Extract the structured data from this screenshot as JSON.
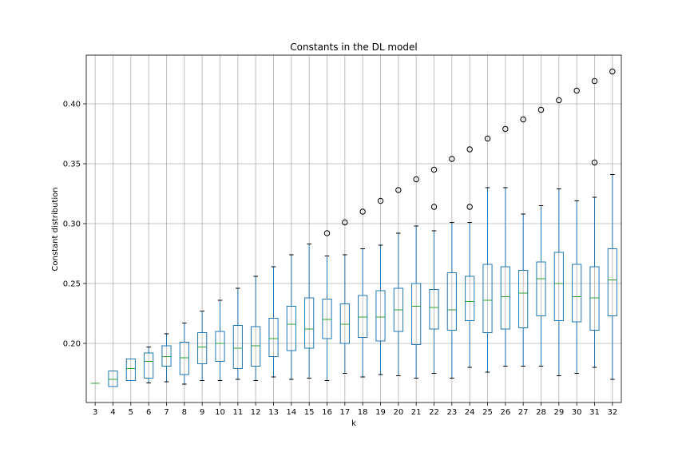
{
  "chart_data": {
    "type": "box",
    "title": "Constants in the DL model",
    "xlabel": "k",
    "ylabel": "Constant distribution",
    "grid": true,
    "ylim": [
      0.15,
      0.44
    ],
    "yticks": [
      0.2,
      0.25,
      0.3,
      0.35,
      0.4
    ],
    "ytick_labels": [
      "0.20",
      "0.25",
      "0.30",
      "0.35",
      "0.40"
    ],
    "colors": {
      "box": "#1f77b4",
      "median": "#2ca02c",
      "whisker": "#000000",
      "grid": "#b0b0b0"
    },
    "categories": [
      "3",
      "4",
      "5",
      "6",
      "7",
      "8",
      "9",
      "10",
      "11",
      "12",
      "13",
      "14",
      "15",
      "16",
      "17",
      "18",
      "19",
      "20",
      "21",
      "22",
      "23",
      "24",
      "25",
      "26",
      "27",
      "28",
      "29",
      "30",
      "31",
      "32"
    ],
    "boxes": [
      {
        "k": "3",
        "whislo": 0.1667,
        "q1": 0.1667,
        "med": 0.1667,
        "q3": 0.1667,
        "whishi": 0.1667,
        "fliers": []
      },
      {
        "k": "4",
        "whislo": 0.164,
        "q1": 0.164,
        "med": 0.17,
        "q3": 0.177,
        "whishi": 0.177,
        "fliers": []
      },
      {
        "k": "5",
        "whislo": 0.169,
        "q1": 0.169,
        "med": 0.179,
        "q3": 0.187,
        "whishi": 0.187,
        "fliers": []
      },
      {
        "k": "6",
        "whislo": 0.167,
        "q1": 0.171,
        "med": 0.185,
        "q3": 0.192,
        "whishi": 0.197,
        "fliers": []
      },
      {
        "k": "7",
        "whislo": 0.168,
        "q1": 0.181,
        "med": 0.189,
        "q3": 0.198,
        "whishi": 0.208,
        "fliers": []
      },
      {
        "k": "8",
        "whislo": 0.166,
        "q1": 0.174,
        "med": 0.188,
        "q3": 0.201,
        "whishi": 0.217,
        "fliers": []
      },
      {
        "k": "9",
        "whislo": 0.169,
        "q1": 0.183,
        "med": 0.197,
        "q3": 0.209,
        "whishi": 0.227,
        "fliers": []
      },
      {
        "k": "10",
        "whislo": 0.169,
        "q1": 0.185,
        "med": 0.2,
        "q3": 0.21,
        "whishi": 0.236,
        "fliers": []
      },
      {
        "k": "11",
        "whislo": 0.17,
        "q1": 0.179,
        "med": 0.196,
        "q3": 0.215,
        "whishi": 0.246,
        "fliers": []
      },
      {
        "k": "12",
        "whislo": 0.169,
        "q1": 0.181,
        "med": 0.198,
        "q3": 0.214,
        "whishi": 0.256,
        "fliers": []
      },
      {
        "k": "13",
        "whislo": 0.172,
        "q1": 0.189,
        "med": 0.204,
        "q3": 0.221,
        "whishi": 0.264,
        "fliers": []
      },
      {
        "k": "14",
        "whislo": 0.17,
        "q1": 0.194,
        "med": 0.216,
        "q3": 0.231,
        "whishi": 0.274,
        "fliers": []
      },
      {
        "k": "15",
        "whislo": 0.171,
        "q1": 0.196,
        "med": 0.212,
        "q3": 0.238,
        "whishi": 0.283,
        "fliers": []
      },
      {
        "k": "16",
        "whislo": 0.169,
        "q1": 0.204,
        "med": 0.22,
        "q3": 0.237,
        "whishi": 0.273,
        "fliers": [
          0.292
        ]
      },
      {
        "k": "17",
        "whislo": 0.175,
        "q1": 0.2,
        "med": 0.216,
        "q3": 0.233,
        "whishi": 0.274,
        "fliers": [
          0.301
        ]
      },
      {
        "k": "18",
        "whislo": 0.172,
        "q1": 0.205,
        "med": 0.222,
        "q3": 0.24,
        "whishi": 0.279,
        "fliers": [
          0.31
        ]
      },
      {
        "k": "19",
        "whislo": 0.174,
        "q1": 0.202,
        "med": 0.222,
        "q3": 0.244,
        "whishi": 0.282,
        "fliers": [
          0.319
        ]
      },
      {
        "k": "20",
        "whislo": 0.173,
        "q1": 0.21,
        "med": 0.228,
        "q3": 0.246,
        "whishi": 0.292,
        "fliers": [
          0.328
        ]
      },
      {
        "k": "21",
        "whislo": 0.171,
        "q1": 0.199,
        "med": 0.231,
        "q3": 0.25,
        "whishi": 0.298,
        "fliers": [
          0.337
        ]
      },
      {
        "k": "22",
        "whislo": 0.175,
        "q1": 0.212,
        "med": 0.23,
        "q3": 0.245,
        "whishi": 0.294,
        "fliers": [
          0.314,
          0.345
        ]
      },
      {
        "k": "23",
        "whislo": 0.171,
        "q1": 0.211,
        "med": 0.228,
        "q3": 0.259,
        "whishi": 0.301,
        "fliers": [
          0.354
        ]
      },
      {
        "k": "24",
        "whislo": 0.18,
        "q1": 0.219,
        "med": 0.235,
        "q3": 0.256,
        "whishi": 0.301,
        "fliers": [
          0.314,
          0.362
        ]
      },
      {
        "k": "25",
        "whislo": 0.176,
        "q1": 0.209,
        "med": 0.236,
        "q3": 0.266,
        "whishi": 0.33,
        "fliers": [
          0.371
        ]
      },
      {
        "k": "26",
        "whislo": 0.181,
        "q1": 0.212,
        "med": 0.239,
        "q3": 0.264,
        "whishi": 0.33,
        "fliers": [
          0.379
        ]
      },
      {
        "k": "27",
        "whislo": 0.181,
        "q1": 0.213,
        "med": 0.242,
        "q3": 0.261,
        "whishi": 0.308,
        "fliers": [
          0.387
        ]
      },
      {
        "k": "28",
        "whislo": 0.181,
        "q1": 0.223,
        "med": 0.254,
        "q3": 0.268,
        "whishi": 0.315,
        "fliers": [
          0.395
        ]
      },
      {
        "k": "29",
        "whislo": 0.173,
        "q1": 0.219,
        "med": 0.25,
        "q3": 0.276,
        "whishi": 0.329,
        "fliers": [
          0.403
        ]
      },
      {
        "k": "30",
        "whislo": 0.175,
        "q1": 0.218,
        "med": 0.239,
        "q3": 0.266,
        "whishi": 0.319,
        "fliers": [
          0.411
        ]
      },
      {
        "k": "31",
        "whislo": 0.18,
        "q1": 0.211,
        "med": 0.238,
        "q3": 0.264,
        "whishi": 0.322,
        "fliers": [
          0.351,
          0.419
        ]
      },
      {
        "k": "32",
        "whislo": 0.17,
        "q1": 0.223,
        "med": 0.253,
        "q3": 0.279,
        "whishi": 0.341,
        "fliers": [
          0.427
        ]
      }
    ]
  }
}
